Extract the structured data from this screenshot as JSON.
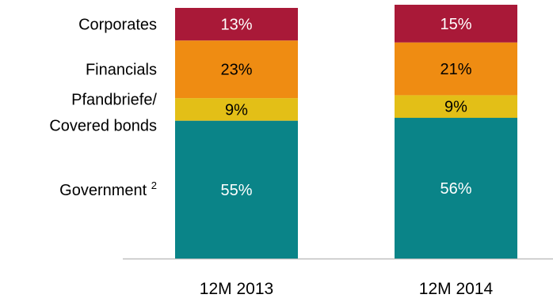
{
  "chart_data": {
    "type": "bar",
    "stacked": true,
    "categories": [
      "12M 2013",
      "12M 2014"
    ],
    "series": [
      {
        "name": "Government",
        "footnote": "2",
        "values": [
          55,
          56
        ],
        "labels": [
          "55%",
          "56%"
        ],
        "color": "#0a8488",
        "label_color": "#ffffff"
      },
      {
        "name_lines": [
          "Pfandbriefe/",
          "Covered bonds"
        ],
        "values": [
          9,
          9
        ],
        "labels": [
          "9%",
          "9%"
        ],
        "color": "#e3bf17",
        "label_color": "#000000"
      },
      {
        "name": "Financials",
        "values": [
          23,
          21
        ],
        "labels": [
          "23%",
          "21%"
        ],
        "color": "#ef8c12",
        "label_color": "#000000"
      },
      {
        "name": "Corporates",
        "values": [
          13,
          15
        ],
        "labels": [
          "13%",
          "15%"
        ],
        "color": "#a91938",
        "label_color": "#ffffff"
      }
    ],
    "ylim": [
      0,
      100
    ],
    "baseline_color": "#bfbfbf",
    "legend_position": "left"
  }
}
